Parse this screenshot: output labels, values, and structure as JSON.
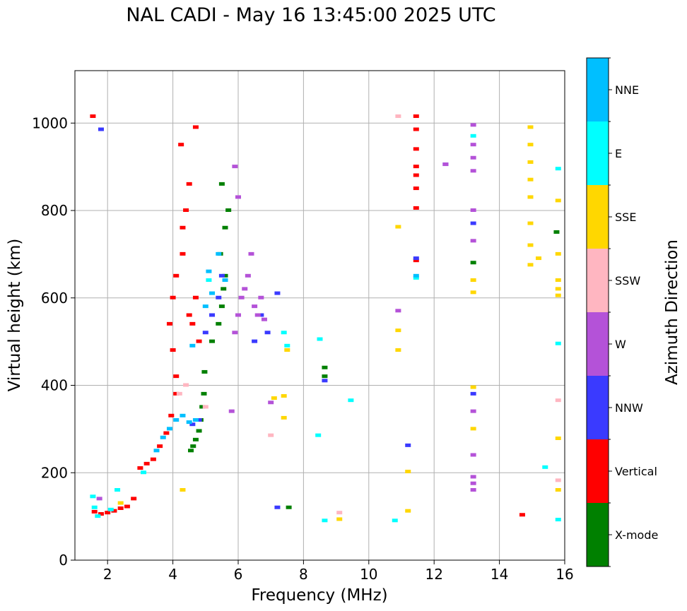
{
  "chart_data": {
    "type": "scatter",
    "title": "NAL CADI - May 16 13:45:00 2025 UTC",
    "xlabel": "Frequency (MHz)",
    "ylabel": "Virtual height (km)",
    "xlim": [
      1,
      16
    ],
    "ylim": [
      0,
      1120
    ],
    "xticks": [
      2,
      4,
      6,
      8,
      10,
      12,
      14,
      16
    ],
    "yticks": [
      0,
      200,
      400,
      600,
      800,
      1000
    ],
    "grid": true,
    "colorbar": {
      "label": "Azimuth Direction",
      "categories": [
        {
          "name": "X-mode",
          "color": "#008000"
        },
        {
          "name": "Vertical",
          "color": "#ff0000"
        },
        {
          "name": "NNW",
          "color": "#3a3aff"
        },
        {
          "name": "W",
          "color": "#b452d8"
        },
        {
          "name": "SSW",
          "color": "#ffb6c1"
        },
        {
          "name": "SSE",
          "color": "#ffd700"
        },
        {
          "name": "E",
          "color": "#00ffff"
        },
        {
          "name": "NNE",
          "color": "#00bfff"
        }
      ]
    },
    "series": [
      {
        "name": "X-mode",
        "points": [
          [
            4.55,
            250
          ],
          [
            4.62,
            260
          ],
          [
            4.7,
            275
          ],
          [
            4.8,
            295
          ],
          [
            4.85,
            320
          ],
          [
            4.9,
            350
          ],
          [
            4.95,
            380
          ],
          [
            4.97,
            430
          ],
          [
            5.2,
            500
          ],
          [
            5.4,
            540
          ],
          [
            5.5,
            580
          ],
          [
            5.55,
            620
          ],
          [
            5.6,
            650
          ],
          [
            5.45,
            700
          ],
          [
            5.6,
            760
          ],
          [
            5.7,
            800
          ],
          [
            5.5,
            860
          ],
          [
            8.65,
            420
          ],
          [
            8.65,
            440
          ],
          [
            7.55,
            120
          ],
          [
            13.2,
            680
          ],
          [
            15.75,
            750
          ]
        ]
      },
      {
        "name": "Vertical",
        "points": [
          [
            1.55,
            1015
          ],
          [
            1.6,
            110
          ],
          [
            1.8,
            105
          ],
          [
            2.0,
            108
          ],
          [
            2.2,
            112
          ],
          [
            2.4,
            118
          ],
          [
            2.6,
            122
          ],
          [
            2.8,
            140
          ],
          [
            3.0,
            210
          ],
          [
            3.2,
            220
          ],
          [
            3.4,
            230
          ],
          [
            3.6,
            260
          ],
          [
            3.8,
            290
          ],
          [
            3.95,
            330
          ],
          [
            4.1,
            380
          ],
          [
            4.1,
            420
          ],
          [
            4.0,
            480
          ],
          [
            3.9,
            540
          ],
          [
            4.0,
            600
          ],
          [
            4.1,
            650
          ],
          [
            4.3,
            700
          ],
          [
            4.3,
            760
          ],
          [
            4.5,
            560
          ],
          [
            4.6,
            540
          ],
          [
            4.7,
            600
          ],
          [
            4.8,
            500
          ],
          [
            4.4,
            800
          ],
          [
            4.5,
            860
          ],
          [
            4.7,
            990
          ],
          [
            4.25,
            950
          ],
          [
            11.45,
            685
          ],
          [
            11.45,
            805
          ],
          [
            11.45,
            850
          ],
          [
            11.45,
            880
          ],
          [
            11.45,
            900
          ],
          [
            11.45,
            940
          ],
          [
            11.45,
            985
          ],
          [
            11.45,
            1015
          ],
          [
            14.7,
            103
          ]
        ]
      },
      {
        "name": "NNW",
        "points": [
          [
            1.8,
            985
          ],
          [
            4.6,
            310
          ],
          [
            4.8,
            320
          ],
          [
            5.0,
            520
          ],
          [
            5.2,
            560
          ],
          [
            5.4,
            600
          ],
          [
            5.5,
            650
          ],
          [
            6.5,
            500
          ],
          [
            6.7,
            560
          ],
          [
            6.9,
            520
          ],
          [
            7.2,
            610
          ],
          [
            7.2,
            120
          ],
          [
            8.65,
            410
          ],
          [
            11.2,
            262
          ],
          [
            11.45,
            690
          ],
          [
            12.35,
            905
          ],
          [
            13.2,
            770
          ],
          [
            13.2,
            380
          ]
        ]
      },
      {
        "name": "W",
        "points": [
          [
            1.75,
            140
          ],
          [
            5.8,
            340
          ],
          [
            5.9,
            520
          ],
          [
            6.0,
            560
          ],
          [
            6.1,
            600
          ],
          [
            6.2,
            620
          ],
          [
            6.3,
            650
          ],
          [
            6.4,
            700
          ],
          [
            6.5,
            580
          ],
          [
            6.6,
            560
          ],
          [
            6.7,
            600
          ],
          [
            6.8,
            550
          ],
          [
            6.0,
            830
          ],
          [
            5.9,
            900
          ],
          [
            10.9,
            570
          ],
          [
            7.0,
            360
          ],
          [
            12.35,
            905
          ],
          [
            13.2,
            160
          ],
          [
            13.2,
            175
          ],
          [
            13.2,
            190
          ],
          [
            13.2,
            240
          ],
          [
            13.2,
            340
          ],
          [
            13.2,
            730
          ],
          [
            13.2,
            800
          ],
          [
            13.2,
            890
          ],
          [
            13.2,
            920
          ],
          [
            13.2,
            950
          ],
          [
            13.2,
            995
          ]
        ]
      },
      {
        "name": "SSW",
        "points": [
          [
            4.2,
            380
          ],
          [
            4.4,
            400
          ],
          [
            5.0,
            350
          ],
          [
            7.0,
            285
          ],
          [
            9.1,
            108
          ],
          [
            10.9,
            1015
          ],
          [
            15.8,
            365
          ],
          [
            15.8,
            182
          ]
        ]
      },
      {
        "name": "SSE",
        "points": [
          [
            2.4,
            130
          ],
          [
            4.3,
            160
          ],
          [
            7.1,
            370
          ],
          [
            7.4,
            325
          ],
          [
            7.4,
            375
          ],
          [
            7.5,
            480
          ],
          [
            9.1,
            93
          ],
          [
            10.9,
            480
          ],
          [
            10.9,
            525
          ],
          [
            10.9,
            762
          ],
          [
            11.2,
            112
          ],
          [
            11.2,
            202
          ],
          [
            13.2,
            300
          ],
          [
            13.2,
            395
          ],
          [
            13.2,
            640
          ],
          [
            13.2,
            612
          ],
          [
            14.95,
            675
          ],
          [
            14.95,
            720
          ],
          [
            14.95,
            770
          ],
          [
            14.95,
            830
          ],
          [
            14.95,
            870
          ],
          [
            14.95,
            910
          ],
          [
            14.95,
            950
          ],
          [
            14.95,
            990
          ],
          [
            15.2,
            690
          ],
          [
            15.8,
            160
          ],
          [
            15.8,
            278
          ],
          [
            15.8,
            605
          ],
          [
            15.8,
            620
          ],
          [
            15.8,
            640
          ],
          [
            15.8,
            700
          ],
          [
            15.8,
            822
          ]
        ]
      },
      {
        "name": "E",
        "points": [
          [
            1.55,
            145
          ],
          [
            1.6,
            120
          ],
          [
            1.7,
            100
          ],
          [
            2.1,
            115
          ],
          [
            2.3,
            160
          ],
          [
            3.1,
            200
          ],
          [
            5.1,
            640
          ],
          [
            7.4,
            520
          ],
          [
            7.5,
            490
          ],
          [
            8.5,
            505
          ],
          [
            8.45,
            285
          ],
          [
            8.65,
            90
          ],
          [
            9.45,
            365
          ],
          [
            10.8,
            90
          ],
          [
            11.45,
            645
          ],
          [
            13.2,
            970
          ],
          [
            15.4,
            212
          ],
          [
            15.8,
            92
          ],
          [
            15.8,
            495
          ],
          [
            15.8,
            895
          ]
        ]
      },
      {
        "name": "NNE",
        "points": [
          [
            3.5,
            250
          ],
          [
            3.7,
            280
          ],
          [
            3.9,
            300
          ],
          [
            4.1,
            320
          ],
          [
            4.3,
            330
          ],
          [
            4.5,
            315
          ],
          [
            4.7,
            320
          ],
          [
            4.6,
            490
          ],
          [
            5.0,
            580
          ],
          [
            5.2,
            610
          ],
          [
            5.1,
            660
          ],
          [
            5.4,
            700
          ],
          [
            5.6,
            640
          ],
          [
            11.45,
            650
          ]
        ]
      }
    ]
  }
}
